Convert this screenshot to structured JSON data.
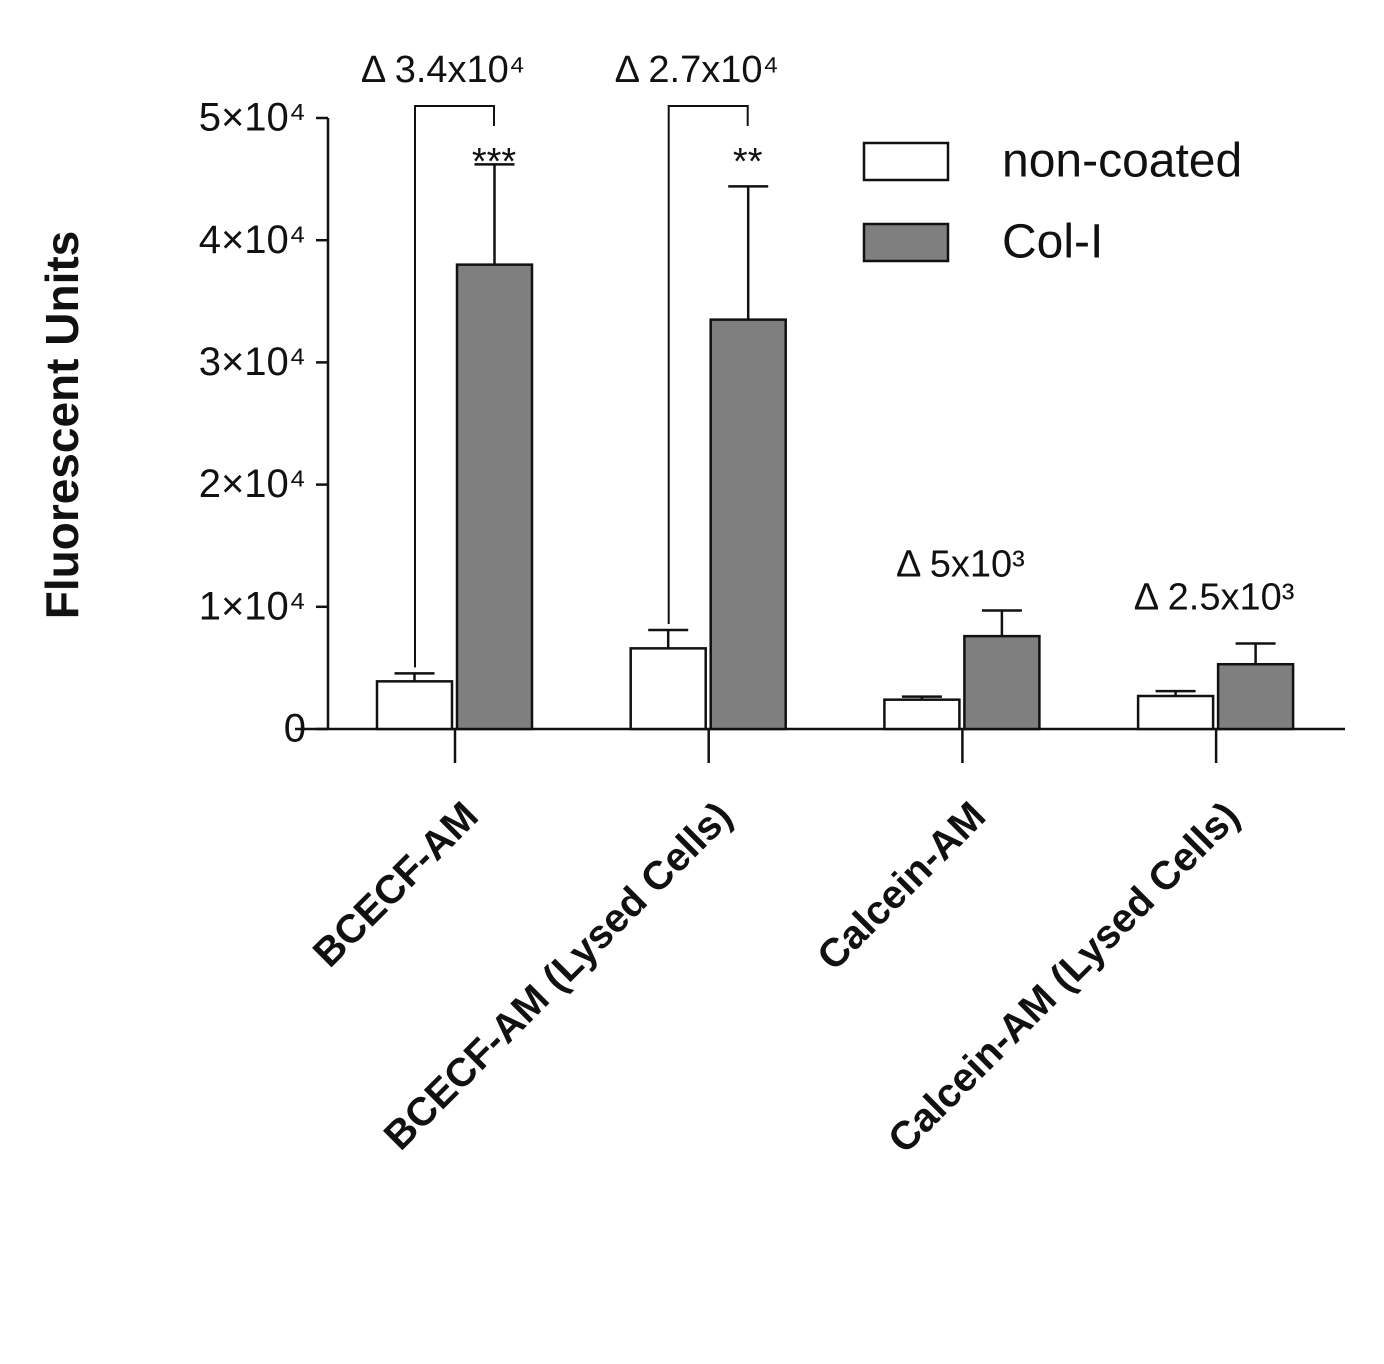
{
  "chart_data": {
    "type": "bar",
    "y_label": "Fluorescent Units",
    "categories": [
      "BCECF-AM",
      "BCECF-AM (Lysed Cells)",
      "Calcein-AM",
      "Calcein-AM (Lysed Cells)"
    ],
    "series": [
      {
        "name": "non-coated",
        "color": "#ffffff",
        "values": [
          3900,
          6600,
          2400,
          2700
        ],
        "errors": [
          650,
          1500,
          250,
          400
        ]
      },
      {
        "name": "Col-I",
        "color": "#7f7f7f",
        "values": [
          38000,
          33500,
          7600,
          5300
        ],
        "errors": [
          8200,
          10900,
          2100,
          1700
        ]
      }
    ],
    "ylim": [
      0,
      50000
    ],
    "yticks": [
      0,
      {
        "value": 10000,
        "label": "1×10⁴"
      },
      {
        "value": 20000,
        "label": "2×10⁴"
      },
      {
        "value": 30000,
        "label": "3×10⁴"
      },
      {
        "value": 40000,
        "label": "4×10⁴"
      },
      {
        "value": 50000,
        "label": "5×10⁴"
      }
    ],
    "annotations": [
      "Δ 3.4x10⁴",
      "***",
      "Δ 2.7x10⁴",
      "**",
      "Δ 5x10³",
      "Δ 2.5x10³"
    ],
    "legend": "top-right",
    "grid": false
  }
}
